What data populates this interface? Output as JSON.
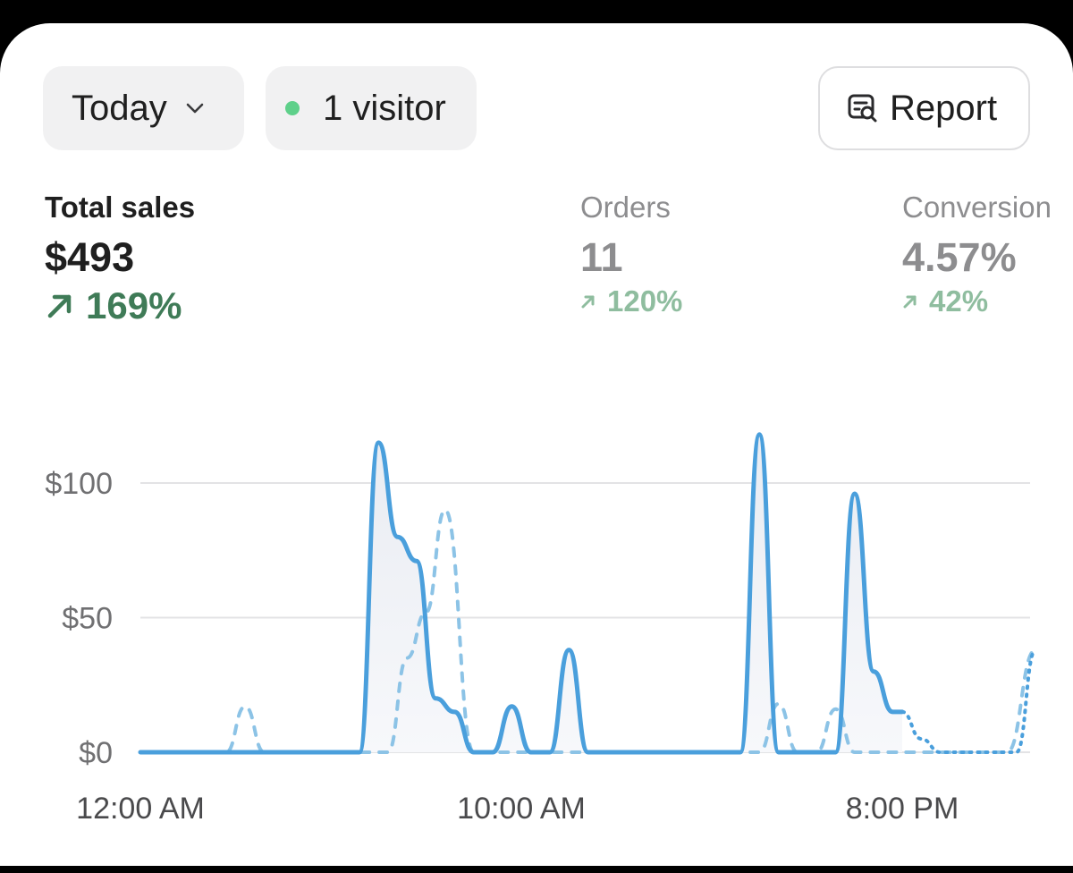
{
  "header": {
    "period_label": "Today",
    "visitors_label": "1 visitor",
    "report_label": "Report"
  },
  "metrics": {
    "sales": {
      "label": "Total sales",
      "value": "$493",
      "change": "169%"
    },
    "orders": {
      "label": "Orders",
      "value": "11",
      "change": "120%"
    },
    "conversion": {
      "label": "Conversion",
      "value": "4.57%",
      "change": "42%"
    }
  },
  "colors": {
    "accent_line": "#4a9fdc",
    "comparison_line": "#8cc3e6",
    "positive_change": "#3f7b57",
    "live_dot": "#5ed08a"
  },
  "chart_data": {
    "type": "line",
    "y_ticks": [
      "$0",
      "$50",
      "$100"
    ],
    "y_tick_values": [
      0,
      50,
      100
    ],
    "x_tick_labels": [
      "12:00 AM",
      "10:00 AM",
      "8:00 PM"
    ],
    "x_tick_hours": [
      0,
      10,
      20
    ],
    "ylim": [
      0,
      120
    ],
    "xlim": [
      0,
      23.5
    ],
    "grid": true,
    "series": [
      {
        "style": "solid",
        "x": [
          0,
          5,
          5.75,
          6.25,
          6.75,
          7.25,
          7.75,
          8.25,
          8.75,
          9.25,
          9.75,
          10.25,
          10.75,
          11.25,
          11.75,
          12.25,
          13.25,
          14.75,
          15.75,
          16.25,
          16.75,
          17.75,
          18.25,
          18.75,
          19.25,
          19.75,
          20
        ],
        "y": [
          0,
          0,
          0,
          115,
          80,
          71,
          20,
          15,
          0,
          0,
          17,
          0,
          0,
          38,
          0,
          0,
          0,
          0,
          0,
          118,
          0,
          0,
          0,
          96,
          30,
          15,
          15
        ]
      },
      {
        "style": "dotted",
        "x": [
          20,
          20.5,
          21,
          23,
          23.5
        ],
        "y": [
          15,
          5,
          0,
          0,
          38
        ]
      },
      {
        "style": "dashed",
        "x": [
          0,
          2.25,
          2.75,
          3.25,
          5.75,
          6.5,
          7,
          7.5,
          8,
          8.75,
          9.25,
          15.75,
          16.25,
          16.75,
          17.25,
          17.75,
          18.25,
          18.75,
          21.25,
          21.75,
          22.75,
          23.5
        ],
        "y": [
          0,
          0,
          17,
          0,
          0,
          0,
          35,
          52,
          90,
          0,
          0,
          0,
          0,
          18,
          0,
          0,
          16,
          0,
          0,
          0,
          0,
          38
        ]
      }
    ]
  }
}
